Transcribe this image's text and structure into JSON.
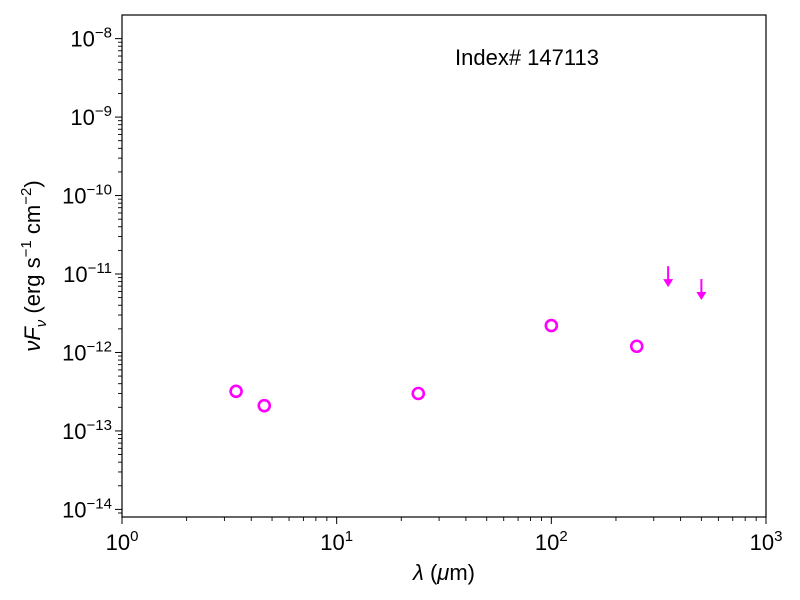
{
  "chart_data": {
    "type": "scatter",
    "x_scale": "log",
    "y_scale": "log",
    "xlim": [
      1,
      1000
    ],
    "ylim": [
      8e-15,
      2e-08
    ],
    "x_ticks": [
      {
        "value": 1,
        "base": "10",
        "exp": "0"
      },
      {
        "value": 10,
        "base": "10",
        "exp": "1"
      },
      {
        "value": 100,
        "base": "10",
        "exp": "2"
      },
      {
        "value": 1000,
        "base": "10",
        "exp": "3"
      }
    ],
    "y_ticks": [
      {
        "value": 1e-14,
        "base": "10",
        "exp": "−14"
      },
      {
        "value": 1e-13,
        "base": "10",
        "exp": "−13"
      },
      {
        "value": 1e-12,
        "base": "10",
        "exp": "−12"
      },
      {
        "value": 1e-11,
        "base": "10",
        "exp": "−11"
      },
      {
        "value": 1e-10,
        "base": "10",
        "exp": "−10"
      },
      {
        "value": 1e-09,
        "base": "10",
        "exp": "−9"
      },
      {
        "value": 1e-08,
        "base": "10",
        "exp": "−8"
      }
    ],
    "xlabel": {
      "symbol": "λ",
      "unit": " (",
      "mu": "μ",
      "rest": "m)"
    },
    "ylabel": {
      "nu": "ν",
      "F": "F",
      "sub": "ν",
      "unit1": " (erg s",
      "exp1": "−1",
      "unit2": " cm",
      "exp2": "−2",
      "close": ")"
    },
    "annotation": "Index# 147113",
    "marker_color": "#ff00ff",
    "points": [
      {
        "x": 3.4,
        "y": 3.2e-13
      },
      {
        "x": 4.6,
        "y": 2.1e-13
      },
      {
        "x": 24,
        "y": 3e-13
      },
      {
        "x": 100,
        "y": 2.2e-12
      },
      {
        "x": 250,
        "y": 1.2e-12
      }
    ],
    "upper_limits": [
      {
        "x": 350,
        "y": 7e-12
      },
      {
        "x": 500,
        "y": 4.8e-12
      }
    ],
    "grid": false,
    "legend": "none"
  }
}
